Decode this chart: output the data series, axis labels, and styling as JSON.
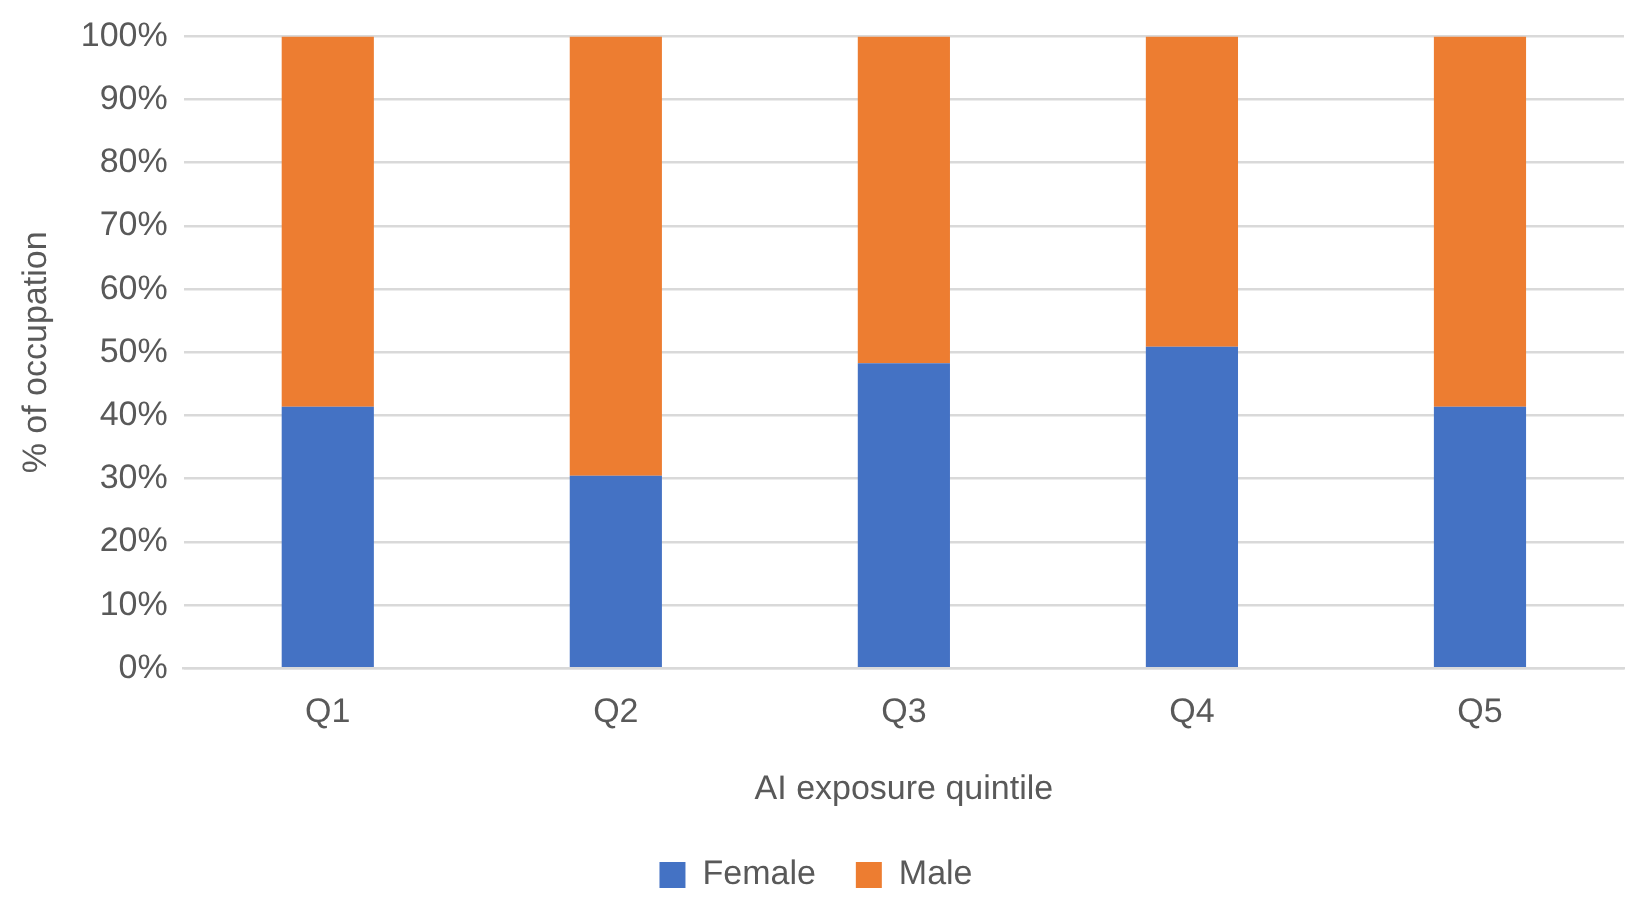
{
  "chart_data": {
    "type": "bar",
    "stacked": true,
    "xlabel": "AI exposure quintile",
    "ylabel": "% of occupation",
    "categories": [
      "Q1",
      "Q2",
      "Q3",
      "Q4",
      "Q5"
    ],
    "series": [
      {
        "name": "Female",
        "color": "#4472c4",
        "values": [
          41.4,
          30.5,
          48.3,
          50.9,
          41.4
        ]
      },
      {
        "name": "Male",
        "color": "#ed7d31",
        "values": [
          58.6,
          69.5,
          51.7,
          49.1,
          58.6
        ]
      }
    ],
    "ylim": [
      0,
      100
    ],
    "yticks": [
      {
        "value": 0,
        "label": "0%"
      },
      {
        "value": 10,
        "label": "10%"
      },
      {
        "value": 20,
        "label": "20%"
      },
      {
        "value": 30,
        "label": "30%"
      },
      {
        "value": 40,
        "label": "40%"
      },
      {
        "value": 50,
        "label": "50%"
      },
      {
        "value": 60,
        "label": "60%"
      },
      {
        "value": 70,
        "label": "70%"
      },
      {
        "value": 80,
        "label": "80%"
      },
      {
        "value": 90,
        "label": "90%"
      },
      {
        "value": 100,
        "label": "100%"
      }
    ],
    "grid": "y",
    "legend": "bottom"
  }
}
